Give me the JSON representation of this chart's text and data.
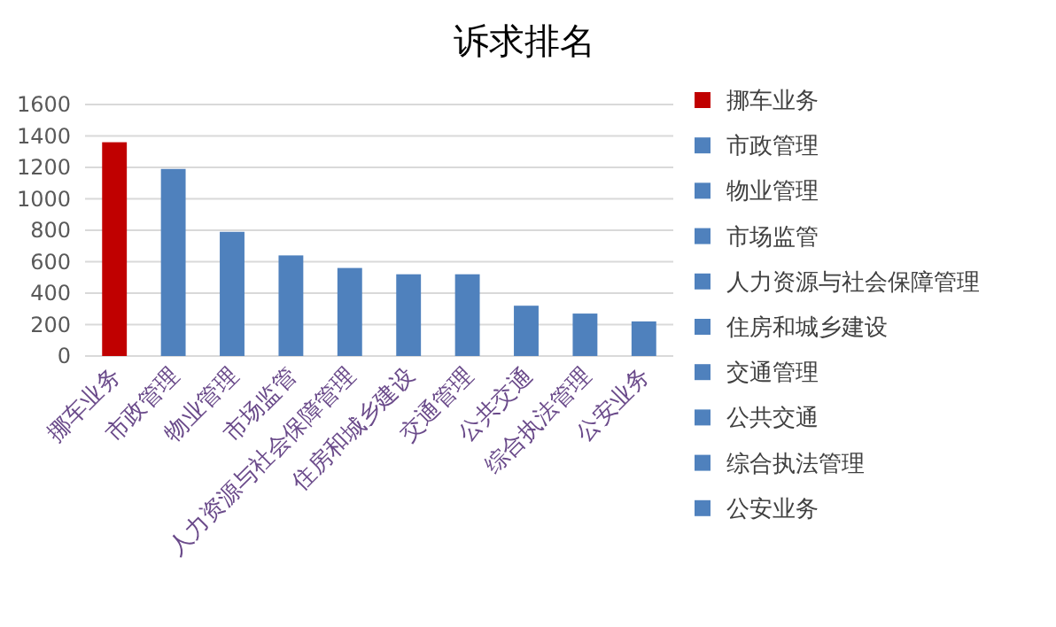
{
  "chart_data": {
    "type": "bar",
    "title": "诉求排名",
    "stacked": true,
    "categories": [
      "挪车业务",
      "市政管理",
      "物业管理",
      "市场监管",
      "人力资源与社会保障管理",
      "住房和城乡建设",
      "交通管理",
      "公共交通",
      "综合执法管理",
      "公安业务"
    ],
    "series": [
      {
        "name": "挪车业务",
        "color": "#c00000",
        "values": [
          1360,
          null,
          null,
          null,
          null,
          null,
          null,
          null,
          null,
          null
        ]
      },
      {
        "name": "市政管理",
        "color": "#4f81bd",
        "values": [
          null,
          1190,
          null,
          null,
          null,
          null,
          null,
          null,
          null,
          null
        ]
      },
      {
        "name": "物业管理",
        "color": "#4f81bd",
        "values": [
          null,
          null,
          790,
          null,
          null,
          null,
          null,
          null,
          null,
          null
        ]
      },
      {
        "name": "市场监管",
        "color": "#4f81bd",
        "values": [
          null,
          null,
          null,
          640,
          null,
          null,
          null,
          null,
          null,
          null
        ]
      },
      {
        "name": "人力资源与社会保障管理",
        "color": "#4f81bd",
        "values": [
          null,
          null,
          null,
          null,
          560,
          null,
          null,
          null,
          null,
          null
        ]
      },
      {
        "name": "住房和城乡建设",
        "color": "#4f81bd",
        "values": [
          null,
          null,
          null,
          null,
          null,
          520,
          null,
          null,
          null,
          null
        ]
      },
      {
        "name": "交通管理",
        "color": "#4f81bd",
        "values": [
          null,
          null,
          null,
          null,
          null,
          null,
          520,
          null,
          null,
          null
        ]
      },
      {
        "name": "公共交通",
        "color": "#4f81bd",
        "values": [
          null,
          null,
          null,
          null,
          null,
          null,
          null,
          320,
          null,
          null
        ]
      },
      {
        "name": "综合执法管理",
        "color": "#4f81bd",
        "values": [
          null,
          null,
          null,
          null,
          null,
          null,
          null,
          null,
          270,
          null
        ]
      },
      {
        "name": "公安业务",
        "color": "#4f81bd",
        "values": [
          null,
          null,
          null,
          null,
          null,
          null,
          null,
          null,
          null,
          220
        ]
      }
    ],
    "ylim": [
      0,
      1600
    ],
    "yticks": [
      0,
      200,
      400,
      600,
      800,
      1000,
      1200,
      1400,
      1600
    ],
    "grid": "y",
    "legend": "right"
  }
}
